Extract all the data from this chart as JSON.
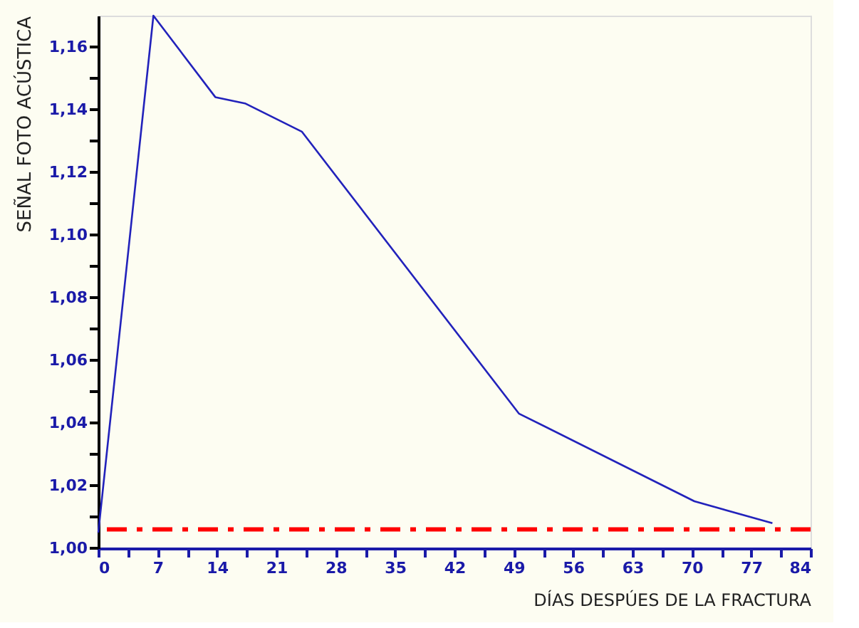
{
  "chart_data": {
    "type": "line",
    "xlabel": "DÍAS DESPÚES DE LA FRACTURA",
    "ylabel": "SEÑAL FOTO ACÚSTICA",
    "x": [
      0,
      6.5,
      13.8,
      17.3,
      24,
      49.6,
      70.3,
      79.5
    ],
    "series": [
      {
        "color": "#2222bb",
        "values": [
          1.005,
          1.17,
          1.144,
          1.142,
          1.133,
          1.043,
          1.015,
          1.008
        ]
      }
    ],
    "xlim": [
      0,
      84
    ],
    "ylim": [
      1.0,
      1.17
    ],
    "xticks": [
      0,
      {
        "value": 3.5,
        "label": null
      },
      7,
      {
        "value": 10.5,
        "label": null
      },
      14,
      {
        "value": 17.5,
        "label": null
      },
      21,
      {
        "value": 24.5,
        "label": null
      },
      28,
      {
        "value": 31.5,
        "label": null
      },
      35,
      {
        "value": 38.5,
        "label": null
      },
      42,
      {
        "value": 45.5,
        "label": null
      },
      49,
      {
        "value": 52.5,
        "label": null
      },
      56,
      {
        "value": 59.5,
        "label": null
      },
      63,
      {
        "value": 66.5,
        "label": null
      },
      70,
      {
        "value": 73.5,
        "label": null
      },
      77,
      {
        "value": 80.5,
        "label": null
      },
      84
    ],
    "yticks": [
      {
        "value": 1.0,
        "label": "1,00"
      },
      {
        "value": 1.01,
        "label": null
      },
      {
        "value": 1.02,
        "label": "1,02"
      },
      {
        "value": 1.03,
        "label": null
      },
      {
        "value": 1.04,
        "label": "1,04"
      },
      {
        "value": 1.05,
        "label": null
      },
      {
        "value": 1.06,
        "label": "1,06"
      },
      {
        "value": 1.07,
        "label": null
      },
      {
        "value": 1.08,
        "label": "1,08"
      },
      {
        "value": 1.09,
        "label": null
      },
      {
        "value": 1.1,
        "label": "1,10"
      },
      {
        "value": 1.11,
        "label": null
      },
      {
        "value": 1.12,
        "label": "1,12"
      },
      {
        "value": 1.13,
        "label": null
      },
      {
        "value": 1.14,
        "label": "1,14"
      },
      {
        "value": 1.15,
        "label": null
      },
      {
        "value": 1.16,
        "label": "1,16"
      }
    ],
    "ref_lines": [
      {
        "axis": "y",
        "value": 1.006,
        "color": "#ff0000",
        "line_style": "dashed"
      }
    ],
    "grid": false,
    "marker": "none",
    "line_style": "solid"
  }
}
